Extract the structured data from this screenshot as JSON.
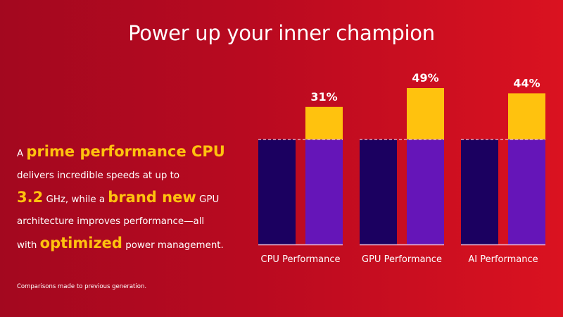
{
  "title": "Power up your inner champion",
  "copy": {
    "l1a": "A ",
    "l1b": "prime performance CPU",
    "l2": "delivers incredible speeds at up to",
    "l3a": "3.2",
    "l3b": " GHz, while a ",
    "l3c": "brand new",
    "l3d": " GPU",
    "l4": "architecture improves performance—all",
    "l5a": "with ",
    "l5b": "optimized",
    "l5c": " power management."
  },
  "footnote": "Comparisons made to previous generation.",
  "colors": {
    "previous": "#1b0060",
    "current": "#6515b8",
    "gain": "#ffc20e",
    "highlight": "#ffc20e"
  },
  "chart_data": {
    "type": "bar",
    "categories": [
      "CPU Performance",
      "GPU Performance",
      "AI Performance"
    ],
    "baseline": 100,
    "improvement_percent": [
      31,
      49,
      44
    ],
    "labels": [
      "31%",
      "49%",
      "44%"
    ]
  }
}
